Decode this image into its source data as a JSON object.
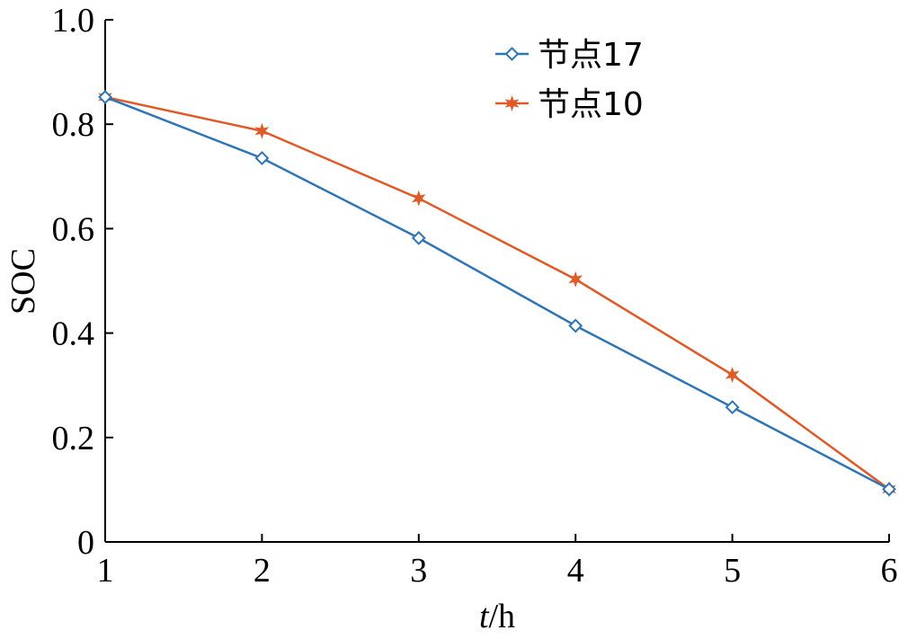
{
  "chart_data": {
    "type": "line",
    "title": "",
    "xlabel_italic": "t",
    "xlabel_rest": "/h",
    "ylabel": "SOC",
    "xlim": [
      1,
      6
    ],
    "ylim": [
      0,
      1.0
    ],
    "x_ticks": [
      1,
      2,
      3,
      4,
      5,
      6
    ],
    "x_tick_labels": [
      "1",
      "2",
      "3",
      "4",
      "5",
      "6"
    ],
    "y_ticks": [
      0,
      0.2,
      0.4,
      0.6,
      0.8,
      1.0
    ],
    "y_tick_labels": [
      "0",
      "0.2",
      "0.4",
      "0.6",
      "0.8",
      "1.0"
    ],
    "grid": false,
    "legend_position": "top-center",
    "x": [
      1,
      2,
      3,
      4,
      5,
      6
    ],
    "series": [
      {
        "name": "节点17",
        "values": [
          0.852,
          0.735,
          0.582,
          0.414,
          0.258,
          0.101
        ],
        "color": "#2e75b6",
        "marker": "diamond"
      },
      {
        "name": "节点10",
        "values": [
          0.852,
          0.787,
          0.658,
          0.503,
          0.32,
          0.101
        ],
        "color": "#e05a27",
        "marker": "star"
      }
    ]
  }
}
